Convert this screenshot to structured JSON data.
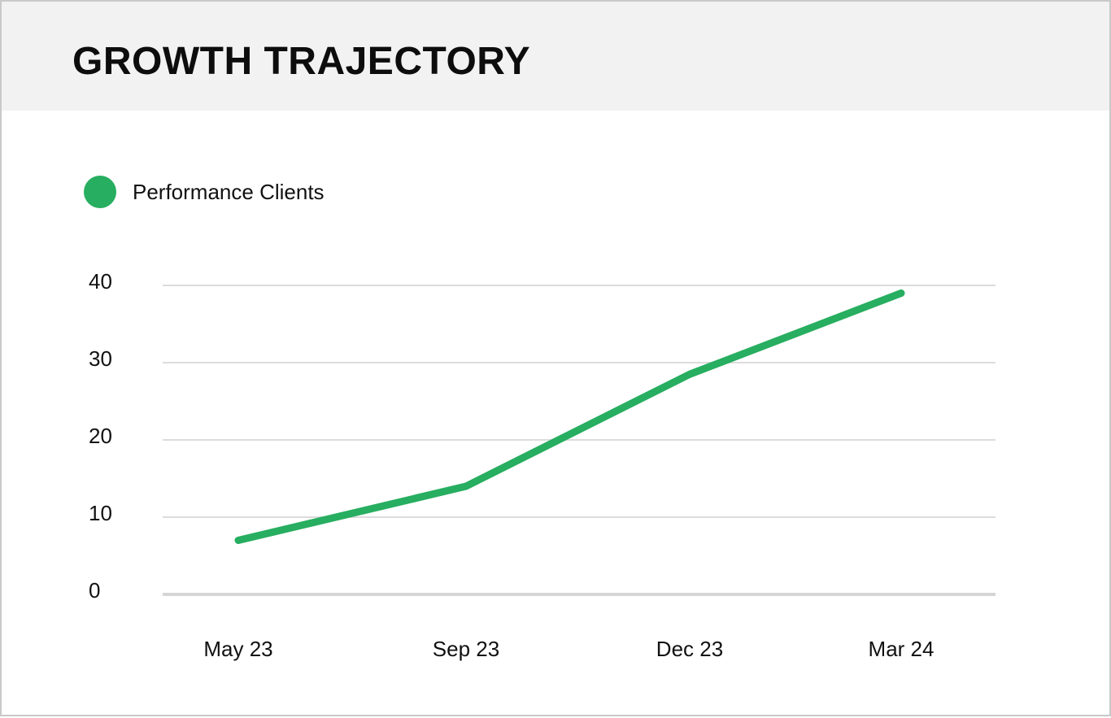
{
  "header": {
    "title": "GROWTH TRAJECTORY"
  },
  "legend": {
    "label": "Performance Clients",
    "color": "#27ae60"
  },
  "chart_data": {
    "type": "line",
    "title": "GROWTH TRAJECTORY",
    "categories": [
      "May 23",
      "Sep 23",
      "Dec 23",
      "Mar 24"
    ],
    "series": [
      {
        "name": "Performance Clients",
        "values": [
          7,
          14,
          28.5,
          39
        ],
        "color": "#27ae60"
      }
    ],
    "ylim": [
      0,
      40
    ],
    "yticks": [
      0,
      10,
      20,
      30,
      40
    ],
    "grid": true,
    "legend_position": "top-left",
    "xlabel": "",
    "ylabel": ""
  }
}
